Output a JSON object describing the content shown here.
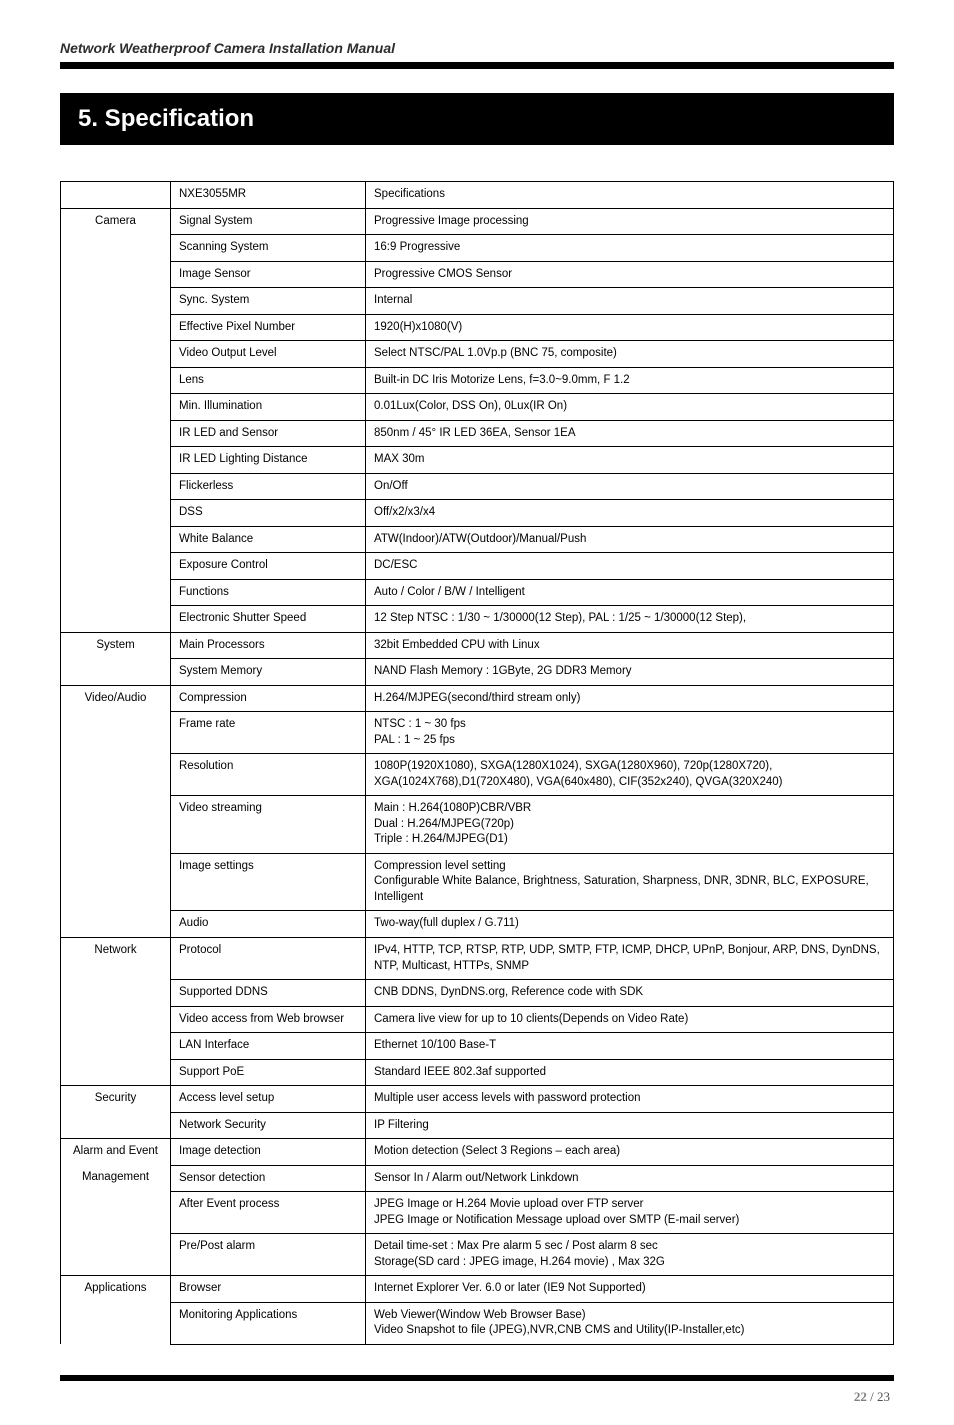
{
  "header": {
    "title": "Network Weatherproof Camera Installation Manual"
  },
  "section": {
    "title": "5. Specification"
  },
  "table": {
    "model_row": {
      "model": "NXE3055MR",
      "spec_header": "Specifications"
    },
    "categories": [
      {
        "name": "Camera",
        "rows": [
          [
            "Signal System",
            "Progressive Image processing"
          ],
          [
            "Scanning System",
            "16:9  Progressive"
          ],
          [
            "Image Sensor",
            "Progressive CMOS Sensor"
          ],
          [
            "Sync. System",
            "Internal"
          ],
          [
            "Effective Pixel Number",
            "1920(H)x1080(V)"
          ],
          [
            "Video Output Level",
            "Select NTSC/PAL 1.0Vp.p (BNC 75, composite)"
          ],
          [
            "Lens",
            "Built-in DC Iris Motorize Lens, f=3.0~9.0mm, F 1.2"
          ],
          [
            "Min. Illumination",
            "0.01Lux(Color, DSS On), 0Lux(IR On)"
          ],
          [
            "IR LED and Sensor",
            "850nm / 45° IR LED 36EA, Sensor 1EA"
          ],
          [
            "IR LED Lighting Distance",
            "MAX 30m"
          ],
          [
            "Flickerless",
            "On/Off"
          ],
          [
            "DSS",
            "Off/x2/x3/x4"
          ],
          [
            "White Balance",
            "ATW(Indoor)/ATW(Outdoor)/Manual/Push"
          ],
          [
            "Exposure Control",
            "DC/ESC"
          ],
          [
            "Functions",
            "Auto / Color / B/W / Intelligent"
          ],
          [
            "Electronic Shutter Speed",
            "12 Step NTSC : 1/30 ~ 1/30000(12 Step), PAL : 1/25 ~ 1/30000(12 Step),"
          ]
        ]
      },
      {
        "name": "System",
        "rows": [
          [
            "Main Processors",
            "32bit Embedded CPU with Linux"
          ],
          [
            "System Memory",
            "NAND Flash Memory : 1GByte, 2G DDR3 Memory"
          ]
        ]
      },
      {
        "name": "Video/Audio",
        "rows": [
          [
            "Compression",
            "H.264/MJPEG(second/third stream only)"
          ],
          [
            "Frame rate",
            "NTSC : 1 ~ 30 fps\nPAL : 1 ~ 25 fps"
          ],
          [
            "Resolution",
            "1080P(1920X1080), SXGA(1280X1024), SXGA(1280X960), 720p(1280X720), XGA(1024X768),D1(720X480), VGA(640x480), CIF(352x240), QVGA(320X240)"
          ],
          [
            "Video streaming",
            "Main : H.264(1080P)CBR/VBR\nDual : H.264/MJPEG(720p)\nTriple : H.264/MJPEG(D1)"
          ],
          [
            "Image settings",
            "Compression level setting\nConfigurable White Balance, Brightness, Saturation, Sharpness, DNR, 3DNR, BLC, EXPOSURE, Intelligent"
          ],
          [
            "Audio",
            "Two-way(full duplex / G.711)"
          ]
        ]
      },
      {
        "name": "Network",
        "rows": [
          [
            "Protocol",
            "IPv4, HTTP, TCP, RTSP, RTP, UDP, SMTP, FTP, ICMP, DHCP, UPnP, Bonjour, ARP, DNS, DynDNS, NTP, Multicast, HTTPs, SNMP"
          ],
          [
            "Supported DDNS",
            "CNB DDNS, DynDNS.org, Reference code with SDK"
          ],
          [
            "Video access from Web browser",
            "Camera live view for up to 10 clients(Depends on Video Rate)"
          ],
          [
            "LAN Interface",
            "Ethernet 10/100 Base-T"
          ],
          [
            "Support PoE",
            "Standard IEEE 802.3af supported"
          ]
        ]
      },
      {
        "name": "Security",
        "rows": [
          [
            "Access level setup",
            "Multiple user access levels with password protection"
          ],
          [
            "Network Security",
            "IP Filtering"
          ]
        ]
      },
      {
        "name": "Alarm and Event Management",
        "split_name": [
          "Alarm and Event",
          "Management"
        ],
        "rows": [
          [
            "Image detection",
            "Motion detection (Select 3 Regions – each area)"
          ],
          [
            "Sensor detection",
            "Sensor In / Alarm out/Network Linkdown"
          ],
          [
            "After Event process",
            "JPEG Image or H.264 Movie upload over FTP server\nJPEG Image or Notification Message upload over SMTP (E-mail server)"
          ],
          [
            "Pre/Post alarm",
            "Detail time-set : Max Pre alarm 5 sec / Post alarm 8 sec\nStorage(SD card : JPEG image, H.264 movie) , Max 32G"
          ]
        ]
      },
      {
        "name": "Applications",
        "rows": [
          [
            "Browser",
            "Internet Explorer Ver. 6.0 or later  (IE9 Not Supported)"
          ],
          [
            "Monitoring Applications",
            "Web Viewer(Window Web Browser Base)\nVideo Snapshot to file (JPEG),NVR,CNB CMS and Utility(IP-Installer,etc)"
          ]
        ]
      }
    ]
  },
  "footer": {
    "current_page": "22",
    "sep": " / ",
    "total_pages": "23"
  }
}
